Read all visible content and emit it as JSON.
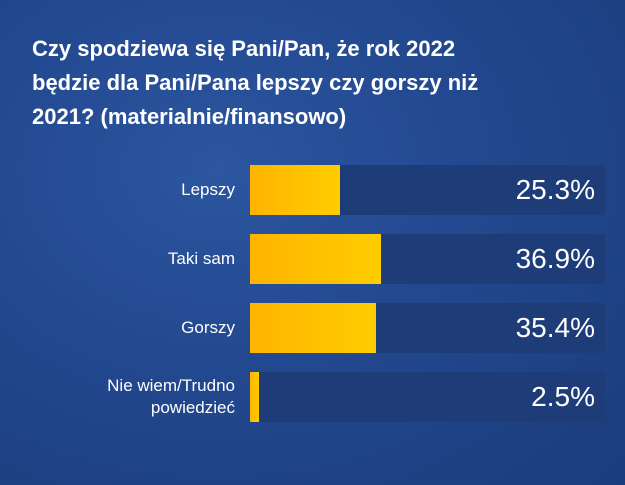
{
  "title": "Czy spodziewa się Pani/Pan, że rok 2022 będzie dla Pani/Pana lepszy czy gorszy niż 2021? (materialnie/finansowo)",
  "title_lines": [
    "Czy spodziewa się Pani/Pan, że rok 2022",
    "będzie dla Pani/Pana lepszy czy gorszy niż",
    "2021? (materialnie/finansowo)"
  ],
  "colors": {
    "bar": "#ffc000",
    "track": "#1d3c78",
    "background": "#22488f"
  },
  "chart_data": {
    "type": "bar",
    "orientation": "horizontal",
    "title": "Czy spodziewa się Pani/Pan, że rok 2022 będzie dla Pani/Pana lepszy czy gorszy niż 2021? (materialnie/finansowo)",
    "categories": [
      "Lepszy",
      "Taki sam",
      "Gorszy",
      "Nie wiem/Trudno powiedzieć"
    ],
    "category_lines": [
      [
        "Lepszy"
      ],
      [
        "Taki sam"
      ],
      [
        "Gorszy"
      ],
      [
        "Nie wiem/Trudno",
        "powiedzieć"
      ]
    ],
    "values": [
      25.3,
      36.9,
      35.4,
      2.5
    ],
    "value_labels": [
      "25.3%",
      "36.9%",
      "35.4%",
      "2.5%"
    ],
    "unit": "%",
    "xlim": [
      0,
      100
    ],
    "grid": false,
    "legend": "none"
  }
}
